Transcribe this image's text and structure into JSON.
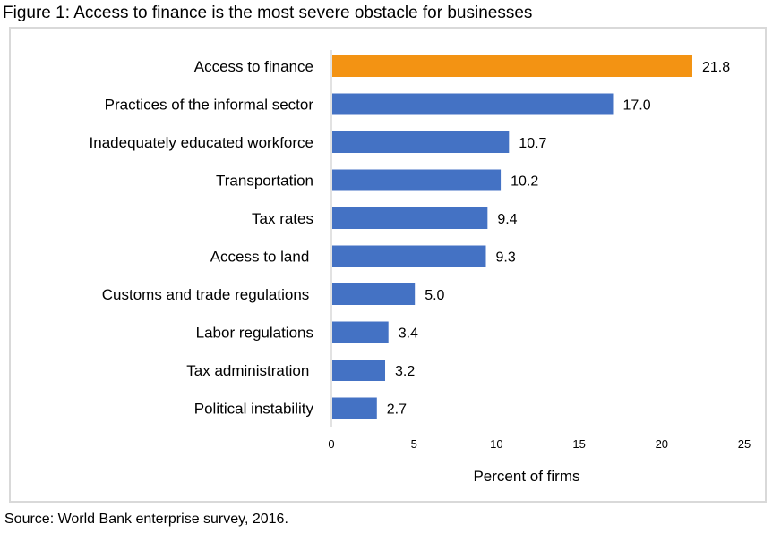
{
  "figure_title": "Figure 1:  Access to finance is the most severe obstacle for businesses",
  "source": "Source: World Bank enterprise survey, 2016.",
  "colors": {
    "highlight": "#F39313",
    "bar": "#4472C4",
    "axis": "#d9d9d9",
    "frame": "#d9d9d9"
  },
  "chart_data": {
    "type": "bar",
    "orientation": "horizontal",
    "title": "Figure 1:  Access to finance is the most severe obstacle for businesses",
    "xlabel": "Percent of firms",
    "ylabel": "",
    "xlim": [
      0,
      25
    ],
    "xticks": [
      0,
      5,
      10,
      15,
      20,
      25
    ],
    "xtick_labels": [
      "0",
      "5",
      "10",
      "15",
      "20",
      "25"
    ],
    "grid": false,
    "legend": "none",
    "categories": [
      "Access to finance",
      "Practices of the informal sector",
      "Inadequately educated workforce",
      "Transportation",
      "Tax rates",
      "Access to land ",
      "Customs and trade regulations ",
      "Labor regulations",
      "Tax administration ",
      "Political instability"
    ],
    "values": [
      21.8,
      17.0,
      10.7,
      10.2,
      9.4,
      9.3,
      5.0,
      3.4,
      3.2,
      2.7
    ],
    "data_labels": [
      "21.8",
      "17.0",
      "10.7",
      "10.2",
      "9.4",
      "9.3",
      "5.0",
      "3.4",
      "3.2",
      "2.7"
    ],
    "highlighted_index": 0
  }
}
